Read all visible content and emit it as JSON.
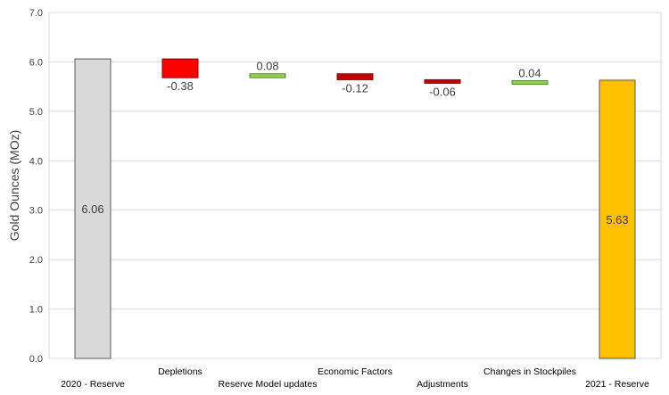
{
  "chart_data": {
    "type": "bar",
    "subtype": "waterfall",
    "title": "",
    "xlabel": "",
    "ylabel": "Gold Ounces (MOz)",
    "ylim": [
      0,
      7
    ],
    "ytick_step": 1,
    "ytick_labels": [
      "0.0",
      "1.0",
      "2.0",
      "3.0",
      "4.0",
      "5.0",
      "6.0",
      "7.0"
    ],
    "grid": true,
    "legend": "none",
    "categories": [
      "2020 - Reserve",
      "Depletions",
      "Reserve Model updates",
      "Economic Factors",
      "Adjustments",
      "Changes in Stockpiles",
      "2021 - Reserve"
    ],
    "values": [
      6.06,
      -0.38,
      0.08,
      -0.12,
      -0.06,
      0.04,
      5.63
    ],
    "bar_kinds": [
      "total",
      "delta",
      "delta",
      "delta",
      "delta",
      "delta",
      "total"
    ],
    "data_labels": [
      "6.06",
      "-0.38",
      "0.08",
      "-0.12",
      "-0.06",
      "0.04",
      "5.63"
    ],
    "colors": {
      "start_total": "#d9d9d9",
      "end_total": "#ffc000",
      "decrease": "#ff0000",
      "decrease_small": "#c00000",
      "increase": "#92d050",
      "gridline": "#d9d9d9",
      "axis_text": "#404040"
    }
  }
}
